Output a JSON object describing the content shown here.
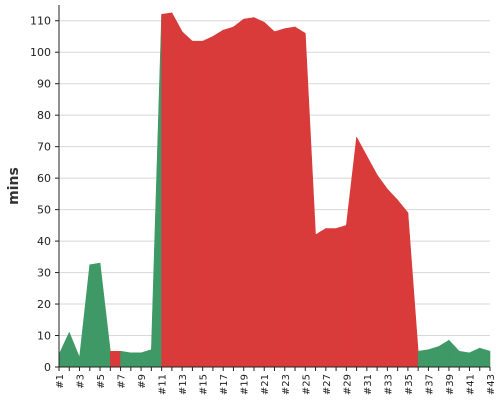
{
  "chart_data": {
    "type": "area",
    "title": "",
    "xlabel": "",
    "ylabel": "mins",
    "ylim": [
      0,
      115
    ],
    "yticks": [
      0,
      10,
      20,
      30,
      40,
      50,
      60,
      70,
      80,
      90,
      100,
      110
    ],
    "xtick_labels": [
      "#1",
      "#3",
      "#5",
      "#7",
      "#9",
      "#11",
      "#13",
      "#15",
      "#17",
      "#19",
      "#21",
      "#23",
      "#25",
      "#27",
      "#29",
      "#31",
      "#33",
      "#35",
      "#37",
      "#39",
      "#41",
      "#43"
    ],
    "grid": true,
    "legend": "none",
    "x": [
      "#1",
      "#2",
      "#3",
      "#4",
      "#5",
      "#6",
      "#7",
      "#8",
      "#9",
      "#10",
      "#11",
      "#12",
      "#13",
      "#14",
      "#15",
      "#16",
      "#17",
      "#18",
      "#19",
      "#20",
      "#21",
      "#22",
      "#23",
      "#24",
      "#25",
      "#26",
      "#27",
      "#28",
      "#29",
      "#30",
      "#31",
      "#32",
      "#33",
      "#34",
      "#35",
      "#36",
      "#37",
      "#38",
      "#39",
      "#40",
      "#41",
      "#42",
      "#43"
    ],
    "values": [
      4,
      11,
      3,
      32.5,
      33,
      5,
      5,
      4.5,
      4.5,
      5.5,
      112,
      112.5,
      106.5,
      103.5,
      103.5,
      105,
      107,
      108,
      110.5,
      111,
      109.5,
      106.5,
      107.5,
      108,
      106,
      42,
      44,
      44,
      45,
      73,
      67,
      61,
      56.5,
      53,
      49,
      5,
      5.5,
      6.5,
      8.5,
      5,
      4.5,
      6,
      5
    ],
    "segment_state": [
      "good",
      "good",
      "good",
      "good",
      "good",
      "bad",
      "good",
      "good",
      "good",
      "good",
      "bad",
      "bad",
      "bad",
      "bad",
      "bad",
      "bad",
      "bad",
      "bad",
      "bad",
      "bad",
      "bad",
      "bad",
      "bad",
      "bad",
      "bad",
      "bad",
      "bad",
      "bad",
      "bad",
      "bad",
      "bad",
      "bad",
      "bad",
      "bad",
      "bad",
      "good",
      "good",
      "good",
      "good",
      "good",
      "good",
      "good"
    ],
    "colors": {
      "good": "#3e9966",
      "bad": "#d93a3a",
      "grid": "#d7d7d7",
      "axis": "#222222"
    }
  }
}
